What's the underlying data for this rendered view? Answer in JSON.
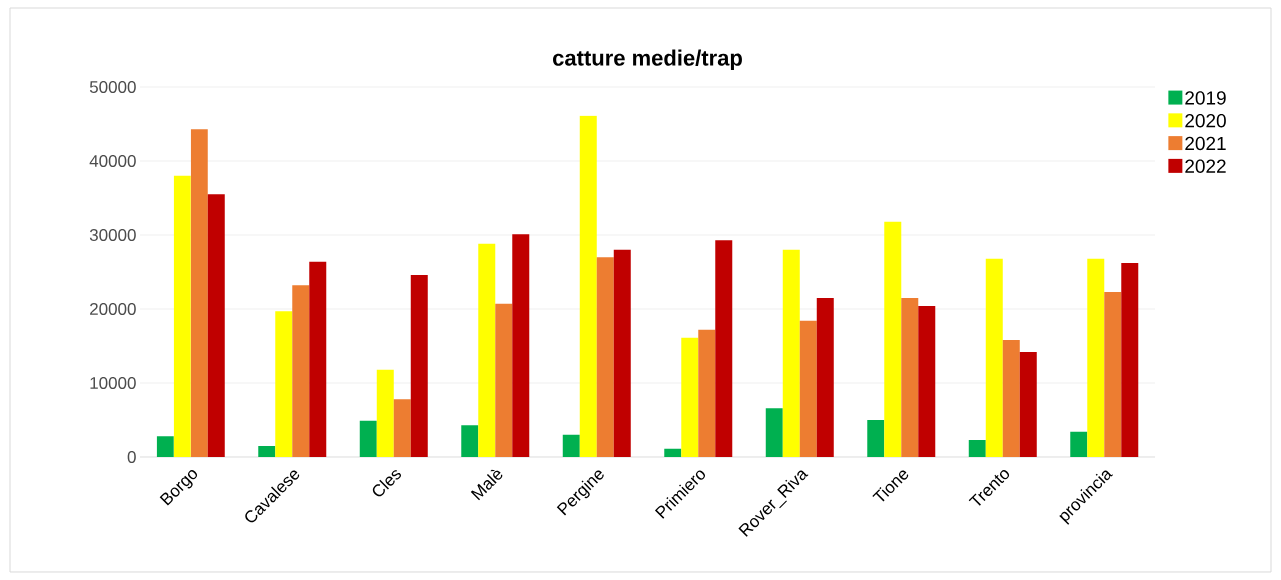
{
  "chart_data": {
    "type": "bar",
    "title": "catture medie/trap",
    "categories": [
      "Borgo",
      "Cavalese",
      "Cles",
      "Malè",
      "Pergine",
      "Primiero",
      "Rover_Riva",
      "Tione",
      "Trento",
      "provincia"
    ],
    "series": [
      {
        "name": "2019",
        "color": "#00b050",
        "values": [
          2800,
          1500,
          4900,
          4300,
          3000,
          1100,
          6600,
          5000,
          2300,
          3400
        ]
      },
      {
        "name": "2020",
        "color": "#ffff00",
        "values": [
          38000,
          19700,
          11800,
          28800,
          46100,
          16100,
          28000,
          31800,
          26800,
          26800
        ]
      },
      {
        "name": "2021",
        "color": "#ed7d31",
        "values": [
          44300,
          23200,
          7800,
          20700,
          27000,
          17200,
          18400,
          21500,
          15800,
          22300
        ]
      },
      {
        "name": "2022",
        "color": "#c00000",
        "values": [
          35500,
          26400,
          24600,
          30100,
          28000,
          29300,
          21500,
          20400,
          14200,
          26200
        ]
      }
    ],
    "ylim": [
      0,
      50000
    ],
    "yticks": [
      0,
      10000,
      20000,
      30000,
      40000,
      50000
    ],
    "grid": "y",
    "legend": "right"
  }
}
